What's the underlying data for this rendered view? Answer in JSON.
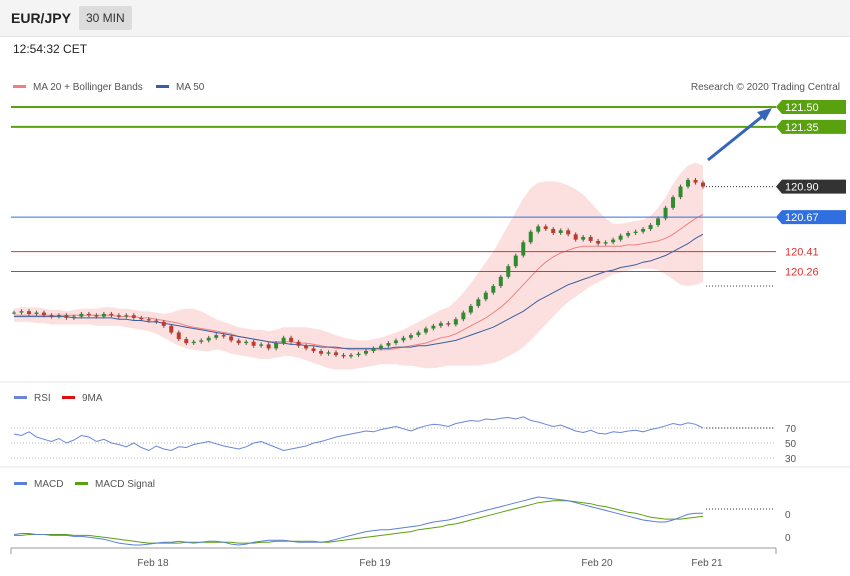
{
  "header": {
    "pair": "EUR/JPY",
    "timeframe": "30 MIN",
    "time": "12:54:32 CET"
  },
  "credit": "Research © 2020 Trading Central",
  "colors": {
    "ma20": "#f08080",
    "ma50": "#3a5f9e",
    "green": "#5aa10f",
    "blue": "#2f6fe0",
    "red": "#e03030",
    "dark": "#333333",
    "rsi": "#6a86d8",
    "nine_ma": "#e01010",
    "macd": "#5a7fd8",
    "signal": "#5aa10f"
  },
  "chart_data": [
    {
      "type": "candlestick",
      "legend": [
        {
          "name": "MA 20 + Bollinger Bands",
          "color": "#f08080"
        },
        {
          "name": "MA 50",
          "color": "#3a5f9e"
        }
      ],
      "ylim": [
        119.3,
        121.75
      ],
      "levels": [
        {
          "value": "121.50",
          "style": "green"
        },
        {
          "value": "121.35",
          "style": "green"
        },
        {
          "value": "120.90",
          "style": "dark"
        },
        {
          "value": "120.67",
          "style": "blue"
        },
        {
          "value": "120.41",
          "style": "red"
        },
        {
          "value": "120.26",
          "style": "red"
        }
      ],
      "x_ticks": [
        "Feb 18",
        "Feb 19",
        "Feb 20",
        "Feb 21"
      ],
      "close": [
        119.95,
        119.96,
        119.94,
        119.95,
        119.93,
        119.92,
        119.93,
        119.91,
        119.92,
        119.94,
        119.93,
        119.92,
        119.94,
        119.93,
        119.92,
        119.93,
        119.91,
        119.9,
        119.89,
        119.88,
        119.85,
        119.8,
        119.75,
        119.72,
        119.73,
        119.74,
        119.76,
        119.78,
        119.77,
        119.74,
        119.72,
        119.73,
        119.7,
        119.71,
        119.68,
        119.72,
        119.76,
        119.73,
        119.7,
        119.68,
        119.66,
        119.64,
        119.65,
        119.63,
        119.62,
        119.63,
        119.64,
        119.66,
        119.68,
        119.7,
        119.72,
        119.74,
        119.76,
        119.78,
        119.8,
        119.83,
        119.85,
        119.87,
        119.86,
        119.9,
        119.95,
        120.0,
        120.05,
        120.1,
        120.15,
        120.22,
        120.3,
        120.38,
        120.48,
        120.56,
        120.6,
        120.58,
        120.55,
        120.57,
        120.54,
        120.5,
        120.52,
        120.49,
        120.47,
        120.48,
        120.5,
        120.53,
        120.55,
        120.56,
        120.58,
        120.61,
        120.66,
        120.74,
        120.82,
        120.9,
        120.95,
        120.93,
        120.9
      ],
      "bb_upper": [
        119.98,
        119.99,
        119.99,
        119.99,
        119.98,
        119.97,
        119.97,
        119.96,
        119.97,
        119.98,
        119.98,
        119.98,
        119.99,
        119.99,
        119.98,
        119.98,
        119.97,
        119.96,
        119.96,
        119.95,
        119.94,
        119.95,
        119.97,
        119.98,
        119.98,
        119.96,
        119.93,
        119.9,
        119.88,
        119.86,
        119.84,
        119.83,
        119.82,
        119.82,
        119.81,
        119.82,
        119.84,
        119.84,
        119.84,
        119.84,
        119.83,
        119.82,
        119.8,
        119.78,
        119.76,
        119.75,
        119.74,
        119.74,
        119.75,
        119.76,
        119.78,
        119.8,
        119.82,
        119.85,
        119.88,
        119.91,
        119.94,
        119.97,
        119.99,
        120.04,
        120.1,
        120.17,
        120.25,
        120.33,
        120.41,
        120.51,
        120.61,
        120.71,
        120.81,
        120.89,
        120.93,
        120.94,
        120.94,
        120.93,
        120.91,
        120.88,
        120.84,
        120.78,
        120.72,
        120.66,
        120.62,
        120.62,
        120.63,
        120.64,
        120.65,
        120.68,
        120.74,
        120.82,
        120.92,
        121.0,
        121.06,
        121.08,
        121.06
      ],
      "ma20": [
        119.93,
        119.93,
        119.93,
        119.93,
        119.93,
        119.93,
        119.93,
        119.93,
        119.93,
        119.93,
        119.93,
        119.93,
        119.93,
        119.93,
        119.92,
        119.92,
        119.92,
        119.91,
        119.91,
        119.9,
        119.89,
        119.88,
        119.87,
        119.85,
        119.84,
        119.83,
        119.82,
        119.81,
        119.8,
        119.79,
        119.77,
        119.76,
        119.75,
        119.74,
        119.73,
        119.73,
        119.73,
        119.73,
        119.72,
        119.72,
        119.71,
        119.7,
        119.69,
        119.68,
        119.68,
        119.67,
        119.67,
        119.67,
        119.67,
        119.67,
        119.67,
        119.68,
        119.69,
        119.7,
        119.71,
        119.72,
        119.74,
        119.76,
        119.77,
        119.79,
        119.82,
        119.85,
        119.88,
        119.91,
        119.95,
        119.99,
        120.04,
        120.1,
        120.16,
        120.22,
        120.28,
        120.33,
        120.37,
        120.4,
        120.42,
        120.44,
        120.45,
        120.45,
        120.45,
        120.45,
        120.45,
        120.45,
        120.46,
        120.46,
        120.47,
        120.48,
        120.49,
        120.51,
        120.54,
        120.58,
        120.62,
        120.66,
        120.69
      ],
      "bb_lower": [
        119.88,
        119.88,
        119.88,
        119.87,
        119.87,
        119.86,
        119.86,
        119.86,
        119.86,
        119.86,
        119.86,
        119.85,
        119.85,
        119.85,
        119.85,
        119.84,
        119.83,
        119.82,
        119.81,
        119.79,
        119.76,
        119.73,
        119.7,
        119.68,
        119.67,
        119.66,
        119.66,
        119.67,
        119.66,
        119.64,
        119.63,
        119.62,
        119.61,
        119.6,
        119.6,
        119.61,
        119.62,
        119.62,
        119.61,
        119.59,
        119.57,
        119.55,
        119.53,
        119.52,
        119.52,
        119.52,
        119.53,
        119.54,
        119.55,
        119.56,
        119.56,
        119.56,
        119.55,
        119.55,
        119.54,
        119.53,
        119.53,
        119.54,
        119.55,
        119.55,
        119.55,
        119.55,
        119.55,
        119.56,
        119.57,
        119.59,
        119.62,
        119.65,
        119.69,
        119.74,
        119.8,
        119.86,
        119.92,
        119.98,
        120.03,
        120.07,
        120.11,
        120.15,
        120.18,
        120.21,
        120.24,
        120.25,
        120.27,
        120.28,
        120.28,
        120.28,
        120.27,
        120.24,
        120.2,
        120.16,
        120.15,
        120.16,
        120.18
      ],
      "ma50": [
        119.92,
        119.92,
        119.92,
        119.92,
        119.92,
        119.92,
        119.92,
        119.92,
        119.91,
        119.91,
        119.91,
        119.91,
        119.91,
        119.91,
        119.9,
        119.9,
        119.89,
        119.89,
        119.88,
        119.88,
        119.87,
        119.86,
        119.85,
        119.84,
        119.83,
        119.82,
        119.81,
        119.8,
        119.79,
        119.78,
        119.77,
        119.76,
        119.75,
        119.74,
        119.73,
        119.72,
        119.72,
        119.71,
        119.71,
        119.7,
        119.7,
        119.69,
        119.69,
        119.69,
        119.68,
        119.68,
        119.68,
        119.68,
        119.68,
        119.68,
        119.68,
        119.69,
        119.69,
        119.69,
        119.7,
        119.7,
        119.71,
        119.72,
        119.73,
        119.74,
        119.76,
        119.78,
        119.8,
        119.82,
        119.84,
        119.87,
        119.9,
        119.93,
        119.96,
        120.0,
        120.04,
        120.07,
        120.1,
        120.13,
        120.16,
        120.18,
        120.2,
        120.22,
        120.24,
        120.26,
        120.27,
        120.29,
        120.3,
        120.31,
        120.33,
        120.34,
        120.36,
        120.38,
        120.41,
        120.44,
        120.47,
        120.51,
        120.54
      ]
    },
    {
      "type": "line",
      "legend": [
        {
          "name": "RSI",
          "color": "#6a86d8"
        },
        {
          "name": "9MA",
          "color": "#e01010"
        }
      ],
      "y_labels": [
        "70",
        "50",
        "30"
      ],
      "series": [
        {
          "name": "RSI",
          "values": [
            62,
            60,
            65,
            58,
            55,
            52,
            56,
            50,
            54,
            60,
            58,
            52,
            55,
            50,
            48,
            45,
            50,
            44,
            40,
            46,
            42,
            40,
            45,
            44,
            48,
            50,
            52,
            49,
            46,
            44,
            42,
            45,
            50,
            52,
            48,
            44,
            40,
            42,
            44,
            46,
            50,
            52,
            55,
            58,
            60,
            62,
            64,
            66,
            65,
            68,
            70,
            72,
            69,
            66,
            70,
            73,
            75,
            74,
            72,
            76,
            78,
            80,
            79,
            82,
            81,
            83,
            84,
            82,
            85,
            80,
            78,
            75,
            72,
            74,
            70,
            66,
            64,
            67,
            63,
            62,
            65,
            64,
            66,
            67,
            65,
            68,
            70,
            73,
            76,
            74,
            77,
            75,
            70
          ]
        }
      ]
    },
    {
      "type": "line",
      "legend": [
        {
          "name": "MACD",
          "color": "#5a7fd8"
        },
        {
          "name": "MACD Signal",
          "color": "#5aa10f"
        }
      ],
      "y_labels": [
        "0",
        "0"
      ],
      "series": [
        {
          "name": "MACD",
          "values": [
            0.02,
            0.03,
            0.03,
            0.02,
            0.02,
            0.01,
            0.01,
            0.01,
            0.0,
            0.0,
            -0.01,
            -0.02,
            -0.03,
            -0.05,
            -0.07,
            -0.08,
            -0.09,
            -0.09,
            -0.08,
            -0.07,
            -0.06,
            -0.06,
            -0.05,
            -0.06,
            -0.07,
            -0.06,
            -0.05,
            -0.05,
            -0.06,
            -0.08,
            -0.09,
            -0.08,
            -0.06,
            -0.05,
            -0.04,
            -0.04,
            -0.04,
            -0.05,
            -0.06,
            -0.06,
            -0.06,
            -0.06,
            -0.05,
            -0.03,
            -0.01,
            0.01,
            0.03,
            0.05,
            0.06,
            0.07,
            0.07,
            0.08,
            0.09,
            0.1,
            0.11,
            0.13,
            0.15,
            0.16,
            0.17,
            0.19,
            0.21,
            0.23,
            0.25,
            0.27,
            0.29,
            0.31,
            0.33,
            0.35,
            0.37,
            0.39,
            0.41,
            0.4,
            0.39,
            0.38,
            0.37,
            0.35,
            0.33,
            0.31,
            0.29,
            0.27,
            0.25,
            0.23,
            0.21,
            0.19,
            0.17,
            0.16,
            0.15,
            0.15,
            0.17,
            0.2,
            0.23,
            0.24,
            0.24
          ]
        },
        {
          "name": "MACD Signal",
          "values": [
            0.01,
            0.01,
            0.02,
            0.02,
            0.02,
            0.02,
            0.02,
            0.02,
            0.01,
            0.01,
            0.01,
            0.0,
            -0.01,
            -0.02,
            -0.03,
            -0.04,
            -0.05,
            -0.06,
            -0.07,
            -0.07,
            -0.07,
            -0.07,
            -0.07,
            -0.06,
            -0.06,
            -0.06,
            -0.06,
            -0.06,
            -0.06,
            -0.06,
            -0.07,
            -0.07,
            -0.07,
            -0.06,
            -0.06,
            -0.05,
            -0.05,
            -0.05,
            -0.05,
            -0.05,
            -0.05,
            -0.06,
            -0.06,
            -0.05,
            -0.04,
            -0.03,
            -0.02,
            -0.01,
            0.0,
            0.01,
            0.02,
            0.03,
            0.04,
            0.05,
            0.07,
            0.08,
            0.09,
            0.1,
            0.12,
            0.13,
            0.15,
            0.17,
            0.19,
            0.21,
            0.23,
            0.25,
            0.27,
            0.29,
            0.31,
            0.33,
            0.35,
            0.36,
            0.37,
            0.37,
            0.37,
            0.36,
            0.35,
            0.34,
            0.32,
            0.31,
            0.29,
            0.27,
            0.25,
            0.24,
            0.22,
            0.2,
            0.19,
            0.18,
            0.18,
            0.18,
            0.19,
            0.2,
            0.21
          ]
        }
      ]
    }
  ]
}
